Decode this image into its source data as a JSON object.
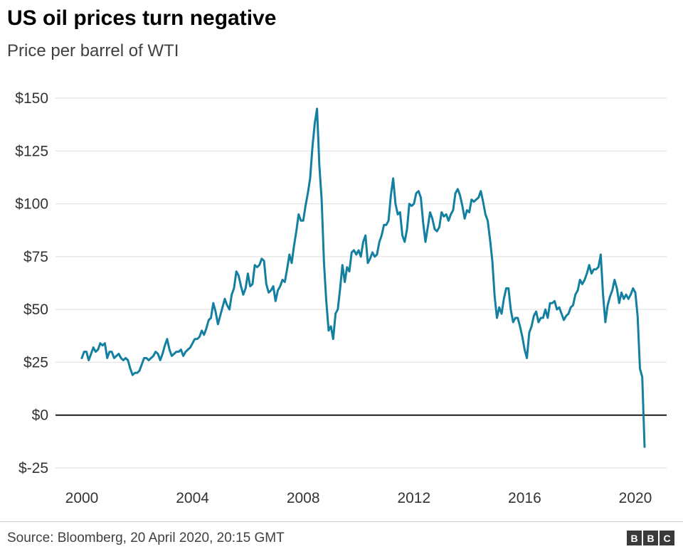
{
  "header": {
    "title": "US oil prices turn negative",
    "subtitle": "Price per barrel of WTI"
  },
  "footer": {
    "source": "Source: Bloomberg, 20 April 2020, 20:15 GMT",
    "logo": [
      "B",
      "B",
      "C"
    ]
  },
  "chart_data": {
    "type": "line",
    "title": "US oil prices turn negative",
    "subtitle": "Price per barrel of WTI",
    "series_name": "WTI crude oil price per barrel (USD)",
    "unit": "USD per barrel",
    "frequency": "monthly (final point 20 April 2020)",
    "x_start_year": 2000,
    "x_end": "2020-04-20",
    "x_tick_years": [
      2000,
      2004,
      2008,
      2012,
      2016,
      2020
    ],
    "x_tick_labels": [
      "2000",
      "2004",
      "2008",
      "2012",
      "2016",
      "2020"
    ],
    "y_ticks": [
      150,
      125,
      100,
      75,
      50,
      25,
      0,
      -25
    ],
    "y_tick_labels": [
      "$150",
      "$125",
      "$100",
      "$75",
      "$50",
      "$25",
      "$0",
      "$-25"
    ],
    "ylim": [
      -25,
      150
    ],
    "grid": "horizontal",
    "zero_line": true,
    "line_color": "#1380A1",
    "zero_line_color": "#1a1a1a",
    "grid_color": "#dedede",
    "values": [
      27,
      30,
      30,
      26,
      29,
      32,
      30,
      31,
      34,
      33,
      34,
      27,
      30,
      30,
      27,
      28,
      29,
      27,
      26,
      27,
      26,
      22,
      19,
      20,
      20,
      21,
      24,
      27,
      27,
      26,
      27,
      28,
      30,
      29,
      26,
      29,
      33,
      36,
      31,
      28,
      29,
      30,
      30,
      31,
      28,
      30,
      31,
      32,
      34,
      36,
      36,
      37,
      40,
      38,
      41,
      45,
      46,
      53,
      49,
      43,
      47,
      51,
      55,
      52,
      50,
      57,
      60,
      68,
      66,
      61,
      57,
      60,
      67,
      61,
      62,
      71,
      70,
      71,
      74,
      73,
      62,
      58,
      59,
      61,
      54,
      59,
      61,
      64,
      63,
      69,
      76,
      72,
      80,
      87,
      95,
      92,
      92,
      99,
      105,
      112,
      127,
      138,
      145,
      118,
      102,
      72,
      54,
      40,
      42,
      36,
      48,
      50,
      60,
      71,
      63,
      70,
      68,
      77,
      78,
      76,
      78,
      75,
      82,
      85,
      72,
      74,
      77,
      75,
      76,
      82,
      85,
      90,
      90,
      92,
      104,
      112,
      100,
      95,
      96,
      85,
      82,
      88,
      100,
      99,
      100,
      105,
      106,
      103,
      91,
      82,
      89,
      96,
      93,
      88,
      87,
      89,
      96,
      94,
      95,
      92,
      95,
      97,
      105,
      107,
      104,
      99,
      93,
      97,
      96,
      102,
      101,
      102,
      103,
      106,
      101,
      95,
      92,
      83,
      73,
      56,
      46,
      51,
      48,
      55,
      60,
      60,
      50,
      44,
      46,
      46,
      42,
      37,
      31,
      27,
      39,
      42,
      47,
      49,
      44,
      46,
      46,
      50,
      46,
      53,
      53,
      54,
      50,
      51,
      48,
      45,
      47,
      48,
      51,
      52,
      57,
      59,
      64,
      62,
      64,
      67,
      71,
      67,
      69,
      69,
      70,
      76,
      57,
      44,
      52,
      56,
      59,
      64,
      60,
      53,
      58,
      55,
      57,
      55,
      57,
      60,
      58,
      47,
      22,
      18,
      -15
    ]
  }
}
